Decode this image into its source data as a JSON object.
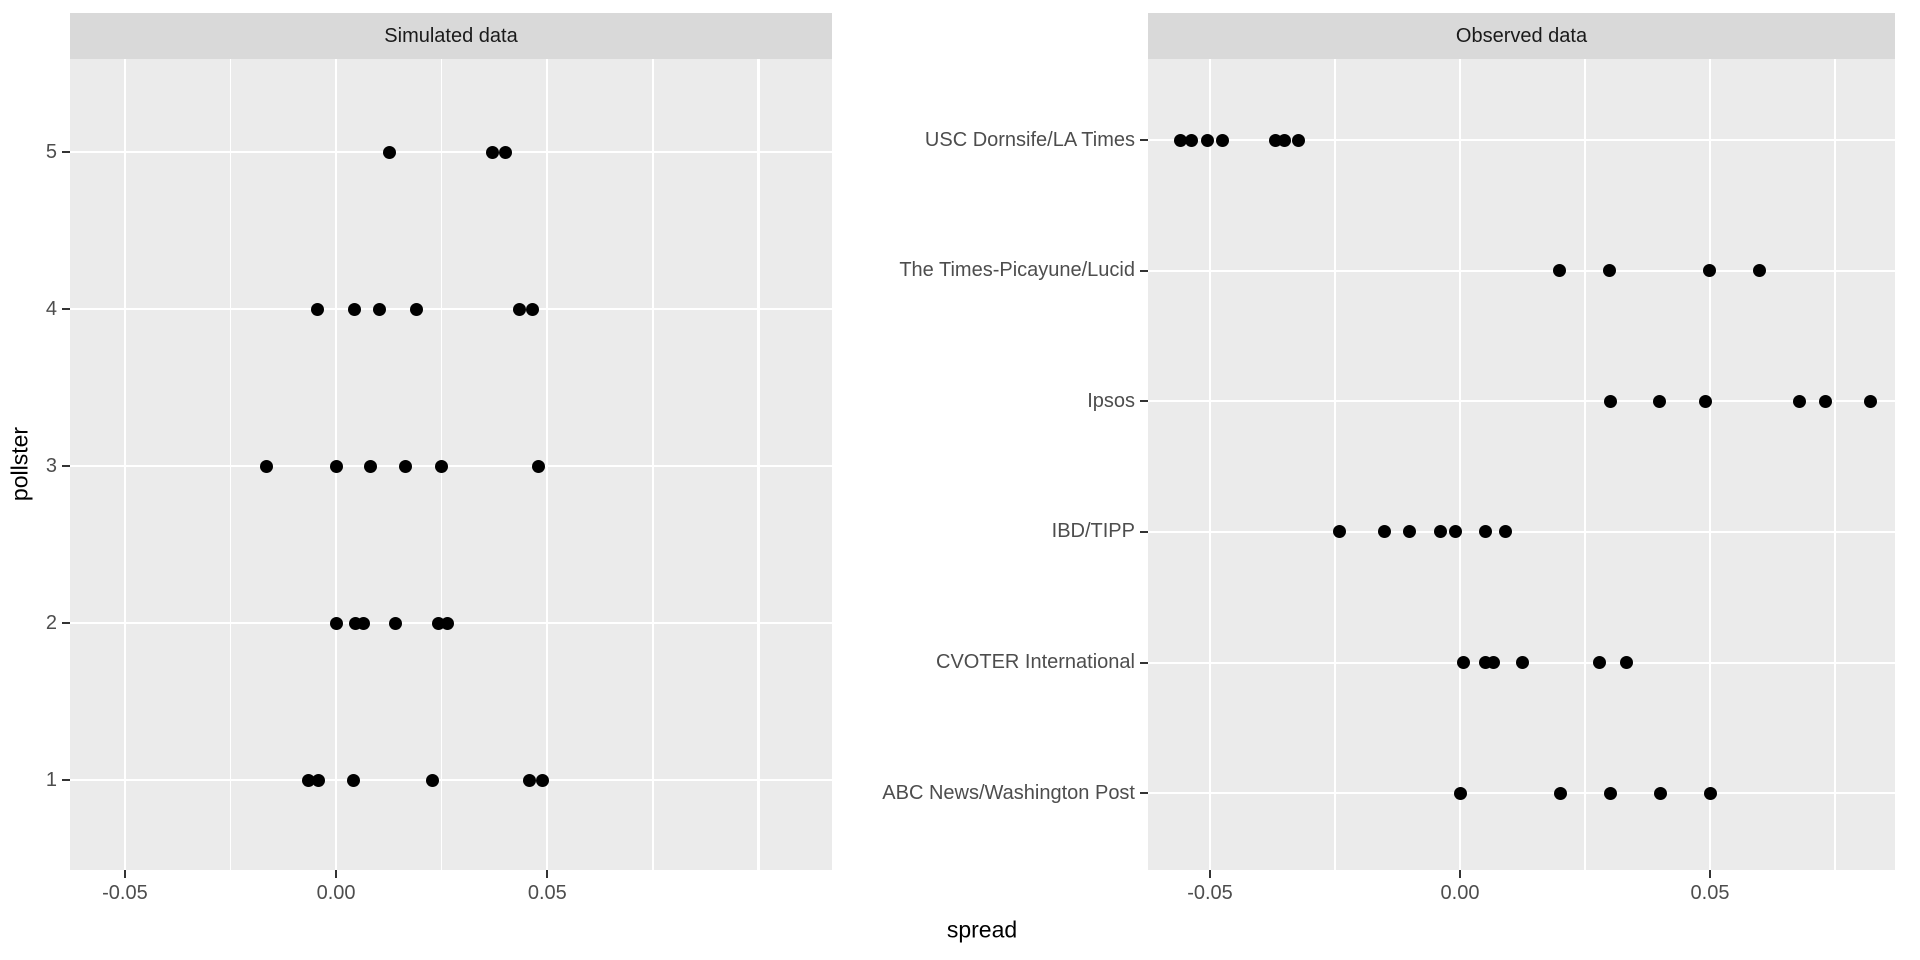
{
  "figure": {
    "xlabel": "spread",
    "ylabel": "pollster",
    "colors": {
      "panel_bg": "#ebebeb",
      "strip_bg": "#d9d9d9",
      "grid": "#ffffff",
      "tick": "#333333",
      "axis_text": "#4d4d4d",
      "strip_text": "#1a1a1a",
      "point": "#000000"
    }
  },
  "chart_data": [
    {
      "type": "scatter",
      "panel_title": "Simulated data",
      "xlabel": "spread",
      "ylabel": "pollster",
      "xlim": [
        -0.063,
        0.1174
      ],
      "x_ticks": [
        -0.05,
        0.0,
        0.05
      ],
      "x_tick_labels": [
        "-0.05",
        "0.00",
        "0.05"
      ],
      "x_grid_major": [
        -0.05,
        0.0,
        0.05,
        0.1
      ],
      "x_grid_minor": [
        -0.025,
        0.025,
        0.075
      ],
      "grid": "on",
      "legend": "none",
      "row_order": "bottom-to-top",
      "rows": [
        {
          "label": "1",
          "values": [
            -0.0066,
            -0.0042,
            0.0041,
            0.0229,
            0.0458,
            0.0489
          ]
        },
        {
          "label": "2",
          "values": [
            0.0,
            0.0045,
            0.0065,
            0.014,
            0.0242,
            0.0264
          ]
        },
        {
          "label": "3",
          "values": [
            -0.0164,
            0.0,
            0.0082,
            0.0164,
            0.025,
            0.0478
          ]
        },
        {
          "label": "4",
          "values": [
            -0.0043,
            0.0044,
            0.0103,
            0.019,
            0.0433,
            0.0464
          ]
        },
        {
          "label": "5",
          "values": [
            0.0127,
            0.0371,
            0.0402
          ]
        }
      ]
    },
    {
      "type": "scatter",
      "panel_title": "Observed data",
      "xlabel": "spread",
      "ylabel": "pollster",
      "xlim": [
        -0.0624,
        0.087
      ],
      "x_ticks": [
        -0.05,
        0.0,
        0.05
      ],
      "x_tick_labels": [
        "-0.05",
        "0.00",
        "0.05"
      ],
      "x_grid_major": [
        -0.05,
        0.0,
        0.05
      ],
      "x_grid_minor": [
        -0.025,
        0.025,
        0.075
      ],
      "grid": "on",
      "legend": "none",
      "row_order": "bottom-to-top",
      "rows": [
        {
          "label": "ABC News/Washington Post",
          "values": [
            0.0,
            0.02,
            0.03,
            0.04,
            0.05
          ]
        },
        {
          "label": "CVOTER International",
          "values": [
            0.0007,
            0.005,
            0.0066,
            0.0125,
            0.0279,
            0.0333
          ]
        },
        {
          "label": "IBD/TIPP",
          "values": [
            -0.0241,
            -0.0152,
            -0.0102,
            -0.004,
            -0.001,
            0.005,
            0.009
          ]
        },
        {
          "label": "Ipsos",
          "values": [
            0.03,
            0.0399,
            0.049,
            0.0679,
            0.073,
            0.082
          ]
        },
        {
          "label": "The Times-Picayune/Lucid",
          "values": [
            0.0199,
            0.0299,
            0.0499,
            0.0599
          ]
        },
        {
          "label": "USC Dornsife/LA Times",
          "values": [
            -0.0559,
            -0.0537,
            -0.0505,
            -0.0475,
            -0.0369,
            -0.0351,
            -0.0323
          ]
        }
      ]
    }
  ]
}
